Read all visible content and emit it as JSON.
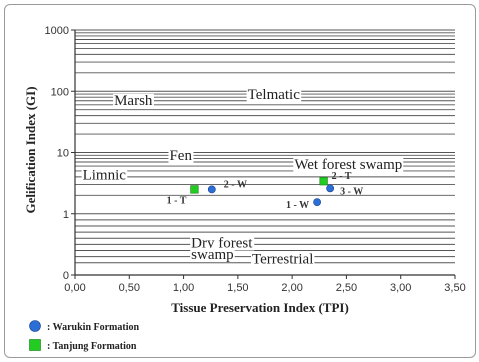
{
  "chart_data": {
    "type": "scatter",
    "xlabel": "Tissue Preservation Index (TPI)",
    "ylabel": "Gelification Index (GI)",
    "xlim": [
      0,
      3.5
    ],
    "ylim": [
      0,
      1000
    ],
    "yscale": "log-like",
    "x_ticks": [
      {
        "value": 0.0,
        "label": "0,00"
      },
      {
        "value": 0.5,
        "label": "0,50"
      },
      {
        "value": 1.0,
        "label": "1,00"
      },
      {
        "value": 1.5,
        "label": "1,50"
      },
      {
        "value": 2.0,
        "label": "2,00"
      },
      {
        "value": 2.5,
        "label": "2,50"
      },
      {
        "value": 3.0,
        "label": "3,00"
      },
      {
        "value": 3.5,
        "label": "3,50"
      }
    ],
    "y_ticks": [
      {
        "value": 0,
        "label": "0"
      },
      {
        "value": 1,
        "label": "1"
      },
      {
        "value": 10,
        "label": "10"
      },
      {
        "value": 100,
        "label": "100"
      },
      {
        "value": 1000,
        "label": "1000"
      }
    ],
    "gridlines_y": [
      0.2,
      0.3,
      0.4,
      0.5,
      0.6,
      0.7,
      0.8,
      0.9,
      1,
      2,
      3,
      4,
      5,
      6,
      7,
      8,
      9,
      10,
      20,
      30,
      40,
      50,
      60,
      70,
      80,
      90,
      100,
      200,
      300,
      400,
      500,
      600,
      700,
      800,
      900,
      1000
    ],
    "grid": "horizontal",
    "series": [
      {
        "name": ": Warukin Formation",
        "marker": "circle",
        "color": "#2b6fd6",
        "points": [
          {
            "x": 1.26,
            "y": 2.5,
            "label": "2 - W"
          },
          {
            "x": 2.23,
            "y": 1.55,
            "label": "1 - W"
          },
          {
            "x": 2.35,
            "y": 2.6,
            "label": "3 - W"
          }
        ]
      },
      {
        "name": ": Tanjung Formation",
        "marker": "square",
        "color": "#22cc22",
        "points": [
          {
            "x": 1.1,
            "y": 2.5,
            "label": "1 - T"
          },
          {
            "x": 2.29,
            "y": 3.4,
            "label": "2 - T"
          }
        ]
      }
    ],
    "regions": [
      {
        "text": "Marsh",
        "x": 0.36,
        "y": 60
      },
      {
        "text": "Telmatic",
        "x": 1.59,
        "y": 75
      },
      {
        "text": "Fen",
        "x": 0.87,
        "y": 7.5
      },
      {
        "text": "Wet forest swamp",
        "x": 2.02,
        "y": 5.4
      },
      {
        "text": "Limnic",
        "x": 0.07,
        "y": 3.6
      },
      {
        "text": "Dry forest",
        "x": 1.07,
        "y": 0.45
      },
      {
        "text": "swamp",
        "x": 1.07,
        "y": 0.26
      },
      {
        "text": "Terrestrial",
        "x": 1.63,
        "y": 0.19
      }
    ],
    "legend_position": "bottom-left"
  }
}
